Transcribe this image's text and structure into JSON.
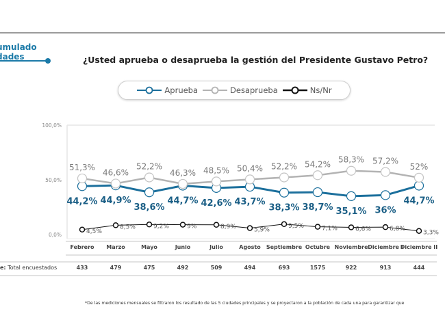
{
  "header": {
    "section_label_line1": "umulado",
    "section_label_line2": "dades",
    "question": "¿Usted aprueba o desaprueba la gestión del Presidente Gustavo Petro?"
  },
  "legend": [
    {
      "label": "Aprueba",
      "color": "#1b6f9c",
      "marker": "open-circle"
    },
    {
      "label": "Desaprueba",
      "color": "#b3b3b3",
      "marker": "open-circle"
    },
    {
      "label": "Ns/Nr",
      "color": "#111111",
      "marker": "open-circle"
    }
  ],
  "chart_data": {
    "type": "line",
    "title": "¿Usted aprueba o desaprueba la gestión del Presidente Gustavo Petro?",
    "xlabel": "",
    "ylabel": "",
    "ylim": [
      0,
      100
    ],
    "y_ticks": [
      "0,0%",
      "50,0%",
      "100,0%"
    ],
    "y_tick_values": [
      0,
      50,
      100
    ],
    "grid": false,
    "legend_position": "top-center",
    "categories": [
      "Febrero",
      "Marzo",
      "Mayo",
      "Junio",
      "Julio",
      "Agosto",
      "Septiembre",
      "Octubre",
      "Noviembre",
      "Diciembre I",
      "Diciembre II"
    ],
    "series": [
      {
        "name": "Aprueba",
        "color": "#1b6f9c",
        "values": [
          44.2,
          44.9,
          38.6,
          44.7,
          42.6,
          43.7,
          38.3,
          38.7,
          35.1,
          36,
          44.7
        ],
        "labels": [
          "44,2%",
          "44,9%",
          "38,6%",
          "44,7%",
          "42,6%",
          "43,7%",
          "38,3%",
          "38,7%",
          "35,1%",
          "36%",
          "44,7%"
        ]
      },
      {
        "name": "Desaprueba",
        "color": "#b3b3b3",
        "values": [
          51.3,
          46.6,
          52.2,
          46.3,
          48.5,
          50.4,
          52.2,
          54.2,
          58.3,
          57.2,
          52
        ],
        "labels": [
          "51,3%",
          "46,6%",
          "52,2%",
          "46,3%",
          "48,5%",
          "50,4%",
          "52,2%",
          "54,2%",
          "58,3%",
          "57,2%",
          "52%"
        ]
      },
      {
        "name": "Ns/Nr",
        "color": "#111111",
        "values": [
          4.5,
          8.5,
          9.2,
          9,
          8.9,
          5.9,
          9.5,
          7.1,
          6.6,
          6.8,
          3.3
        ],
        "labels": [
          "4,5%",
          "8,5%",
          "9,2%",
          "9%",
          "8,9%",
          "5,9%",
          "9,5%",
          "7,1%",
          "6,6%",
          "6,8%",
          "3,3%"
        ]
      }
    ]
  },
  "table": {
    "row_label_prefix": "e:",
    "row_label": " Total encuestados",
    "months": [
      "Febrero",
      "Marzo",
      "Mayo",
      "Junio",
      "Julio",
      "Agosto",
      "Septiembre",
      "Octubre",
      "Noviembre",
      "Diciembre I",
      "Diciembre II"
    ],
    "counts": [
      "433",
      "479",
      "475",
      "492",
      "509",
      "494",
      "693",
      "1575",
      "922",
      "913",
      "444"
    ]
  },
  "footnote": "*De las mediciones mensuales se filtraron los resultado de las 5 ciudades principales y se proyectaron a la población de cada una para garantizar que"
}
